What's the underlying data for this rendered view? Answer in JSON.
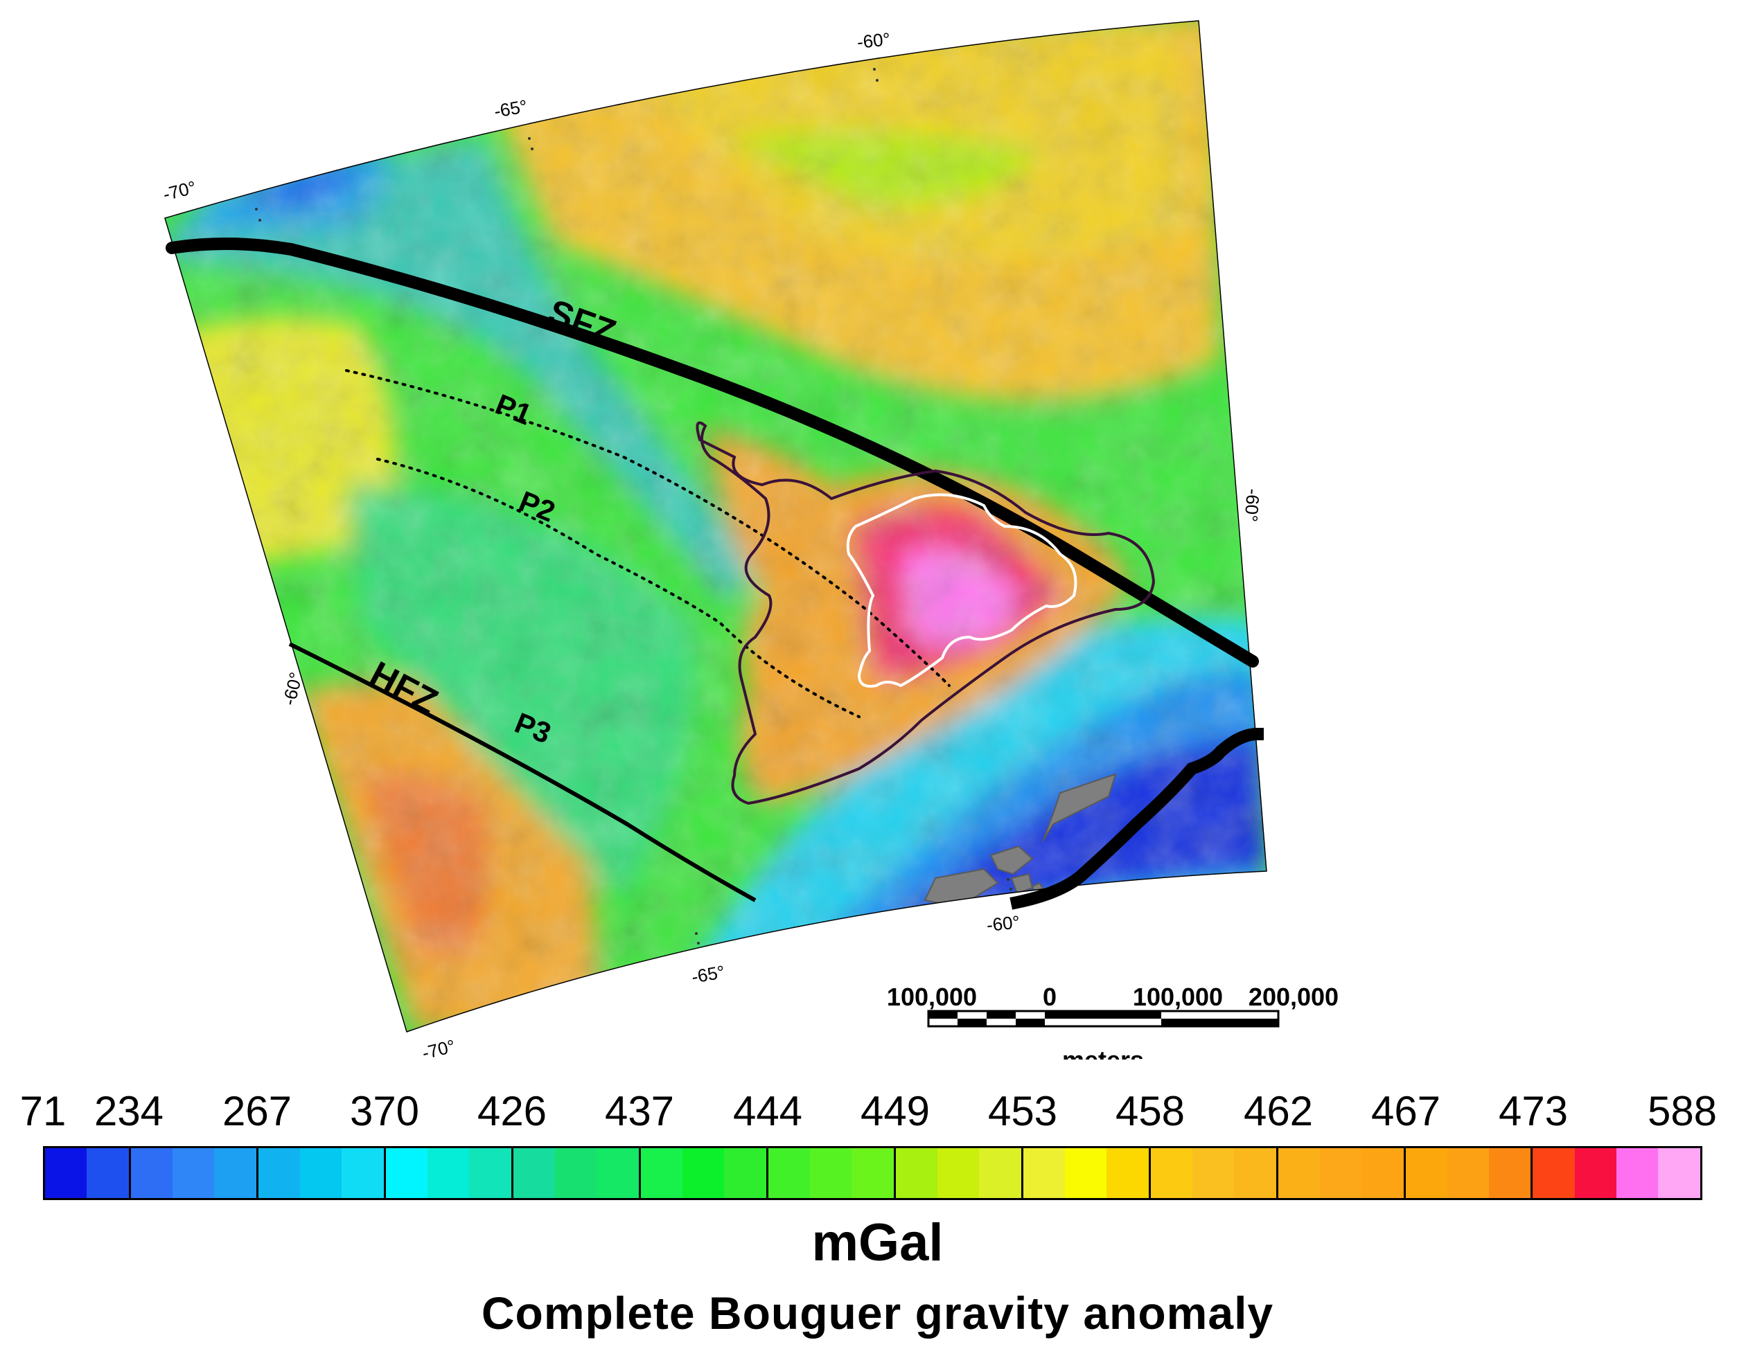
{
  "map": {
    "graticule_labels": {
      "top": [
        "-70°",
        "-65°",
        "-60°"
      ],
      "bottom": [
        "-70°",
        "-65°",
        "-60°"
      ],
      "left": "-60°",
      "right": "-60°"
    },
    "features": {
      "fault_zone_1": "SFZ",
      "fault_zone_2": "HFZ",
      "profiles": [
        "P1",
        "P2",
        "P3"
      ]
    },
    "scale_bar": {
      "ticks": [
        "100,000",
        "0",
        "100,000",
        "200,000"
      ],
      "unit": "meters"
    },
    "colors": {
      "fault_line": "#000000",
      "anomaly_outline": "#3a1238",
      "inner_outline": "#ffffff",
      "land_mask": "#808080"
    }
  },
  "colorbar": {
    "labels": [
      "71",
      "234",
      "267",
      "370",
      "426",
      "437",
      "444",
      "449",
      "453",
      "458",
      "462",
      "467",
      "473",
      "588"
    ],
    "colors": [
      "#0a14e6",
      "#1e50f0",
      "#2d6ef5",
      "#2f86f6",
      "#1d9ff2",
      "#10b3f0",
      "#05c8f0",
      "#10dcf5",
      "#00f5ff",
      "#05edd6",
      "#10e4b8",
      "#16dc9e",
      "#18e070",
      "#14e864",
      "#18f04c",
      "#0cf02c",
      "#2eec2e",
      "#42f02a",
      "#56f222",
      "#6af41c",
      "#a8f010",
      "#c8f00c",
      "#dcf028",
      "#ecf030",
      "#fafa00",
      "#fcd800",
      "#fcca10",
      "#fac020",
      "#fab81c",
      "#fcb018",
      "#fca818",
      "#fca414",
      "#fca80c",
      "#fca014",
      "#fc8814",
      "#fc4414",
      "#f81040",
      "#ff70f0",
      "#ffa6f4"
    ],
    "unit": "mGal"
  },
  "title": "Complete Bouguer gravity anomaly"
}
